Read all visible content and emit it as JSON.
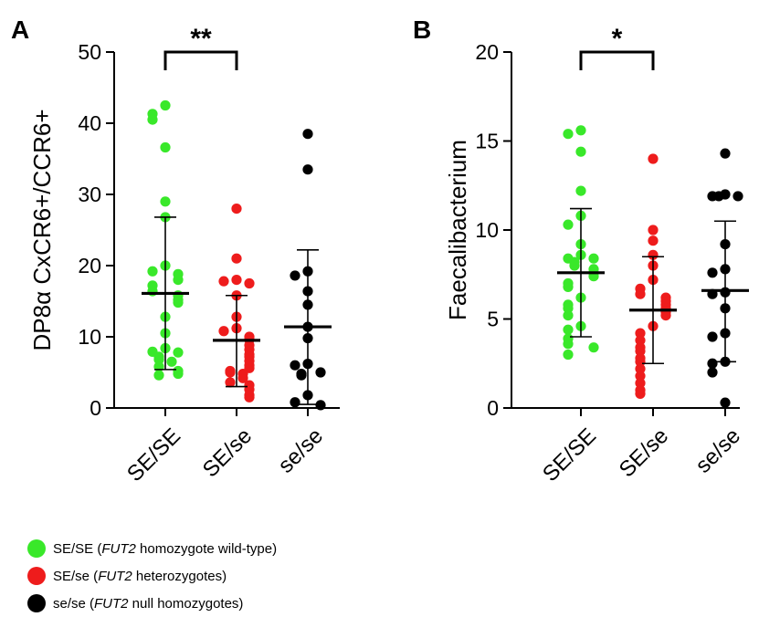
{
  "colors": {
    "SE_SE": "#39e82a",
    "SE_se": "#ee1c1c",
    "se_se": "#000000",
    "axis": "#000000"
  },
  "chart_data": [
    {
      "type": "scatter",
      "panel_label": "A",
      "ylabel": "DP8α CxCR6+/CCR6+",
      "ylim": [
        0,
        50
      ],
      "yticks": [
        0,
        10,
        20,
        30,
        40,
        50
      ],
      "categories": [
        "SE/SE",
        "SE/se",
        "se/se"
      ],
      "significance": {
        "from": "SE/SE",
        "to": "SE/se",
        "label": "**"
      },
      "series": [
        {
          "name": "SE/SE",
          "color_key": "SE_SE",
          "mean": 16.1,
          "sd_low": 5.4,
          "sd_high": 26.8,
          "values": [
            42.5,
            41.3,
            40.5,
            36.6,
            29.0,
            26.8,
            20.0,
            19.2,
            18.8,
            18.0,
            17.2,
            16.4,
            15.8,
            15.2,
            14.8,
            12.8,
            10.5,
            8.4,
            7.9,
            7.8,
            7.2,
            6.8,
            6.5,
            5.8,
            5.2,
            4.8,
            4.6
          ]
        },
        {
          "name": "SE/se",
          "color_key": "SE_se",
          "mean": 9.5,
          "sd_low": 3.0,
          "sd_high": 15.8,
          "values": [
            28.0,
            21.0,
            18.0,
            17.8,
            17.5,
            15.8,
            12.8,
            11.2,
            10.8,
            10.0,
            9.6,
            8.8,
            8.2,
            7.5,
            7.2,
            6.6,
            6.0,
            5.6,
            5.2,
            5.0,
            4.8,
            4.2,
            3.6,
            3.2,
            2.6,
            1.8,
            1.5
          ]
        },
        {
          "name": "se/se",
          "color_key": "se_se",
          "mean": 11.4,
          "sd_low": 0.5,
          "sd_high": 22.2,
          "values": [
            38.5,
            33.5,
            19.2,
            18.6,
            16.4,
            14.5,
            11.4,
            9.8,
            6.2,
            6.0,
            5.0,
            4.8,
            4.6,
            1.8,
            0.8,
            0.4
          ]
        }
      ]
    },
    {
      "type": "scatter",
      "panel_label": "B",
      "ylabel": "Faecalibacterium",
      "ylim": [
        0,
        20
      ],
      "yticks": [
        0,
        5,
        10,
        15,
        20
      ],
      "categories": [
        "SE/SE",
        "SE/se",
        "se/se"
      ],
      "significance": {
        "from": "SE/SE",
        "to": "SE/se",
        "label": "*"
      },
      "series": [
        {
          "name": "SE/SE",
          "color_key": "SE_SE",
          "mean": 7.6,
          "sd_low": 4.0,
          "sd_high": 11.2,
          "values": [
            15.6,
            15.4,
            14.4,
            12.2,
            10.8,
            10.3,
            9.2,
            8.6,
            8.4,
            8.4,
            8.2,
            8.0,
            7.8,
            7.6,
            7.4,
            7.0,
            6.8,
            6.2,
            5.8,
            5.6,
            5.2,
            4.6,
            4.4,
            3.9,
            3.6,
            3.4,
            3.0
          ]
        },
        {
          "name": "SE/se",
          "color_key": "SE_se",
          "mean": 5.5,
          "sd_low": 2.5,
          "sd_high": 8.5,
          "values": [
            14.0,
            10.0,
            9.4,
            8.6,
            8.0,
            7.2,
            6.7,
            6.4,
            6.2,
            6.0,
            5.8,
            5.6,
            5.4,
            5.2,
            4.6,
            4.2,
            3.8,
            3.4,
            3.2,
            2.8,
            2.6,
            2.2,
            1.8,
            1.4,
            1.0,
            0.8
          ]
        },
        {
          "name": "se/se",
          "color_key": "se_se",
          "mean": 6.6,
          "sd_low": 2.6,
          "sd_high": 10.5,
          "values": [
            14.3,
            12.0,
            11.9,
            11.9,
            11.9,
            9.2,
            7.8,
            7.6,
            6.5,
            6.4,
            5.6,
            4.2,
            4.0,
            2.6,
            2.5,
            2.0,
            0.3
          ]
        }
      ]
    }
  ],
  "legend": [
    {
      "color_key": "SE_SE",
      "prefix": "SE/SE (",
      "italic": "FUT2",
      "suffix": " homozygote wild-type)"
    },
    {
      "color_key": "SE_se",
      "prefix": "SE/se (",
      "italic": "FUT2",
      "suffix": " heterozygotes)"
    },
    {
      "color_key": "se_se",
      "prefix": "se/se (",
      "italic": "FUT2",
      "suffix": " null homozygotes)"
    }
  ]
}
